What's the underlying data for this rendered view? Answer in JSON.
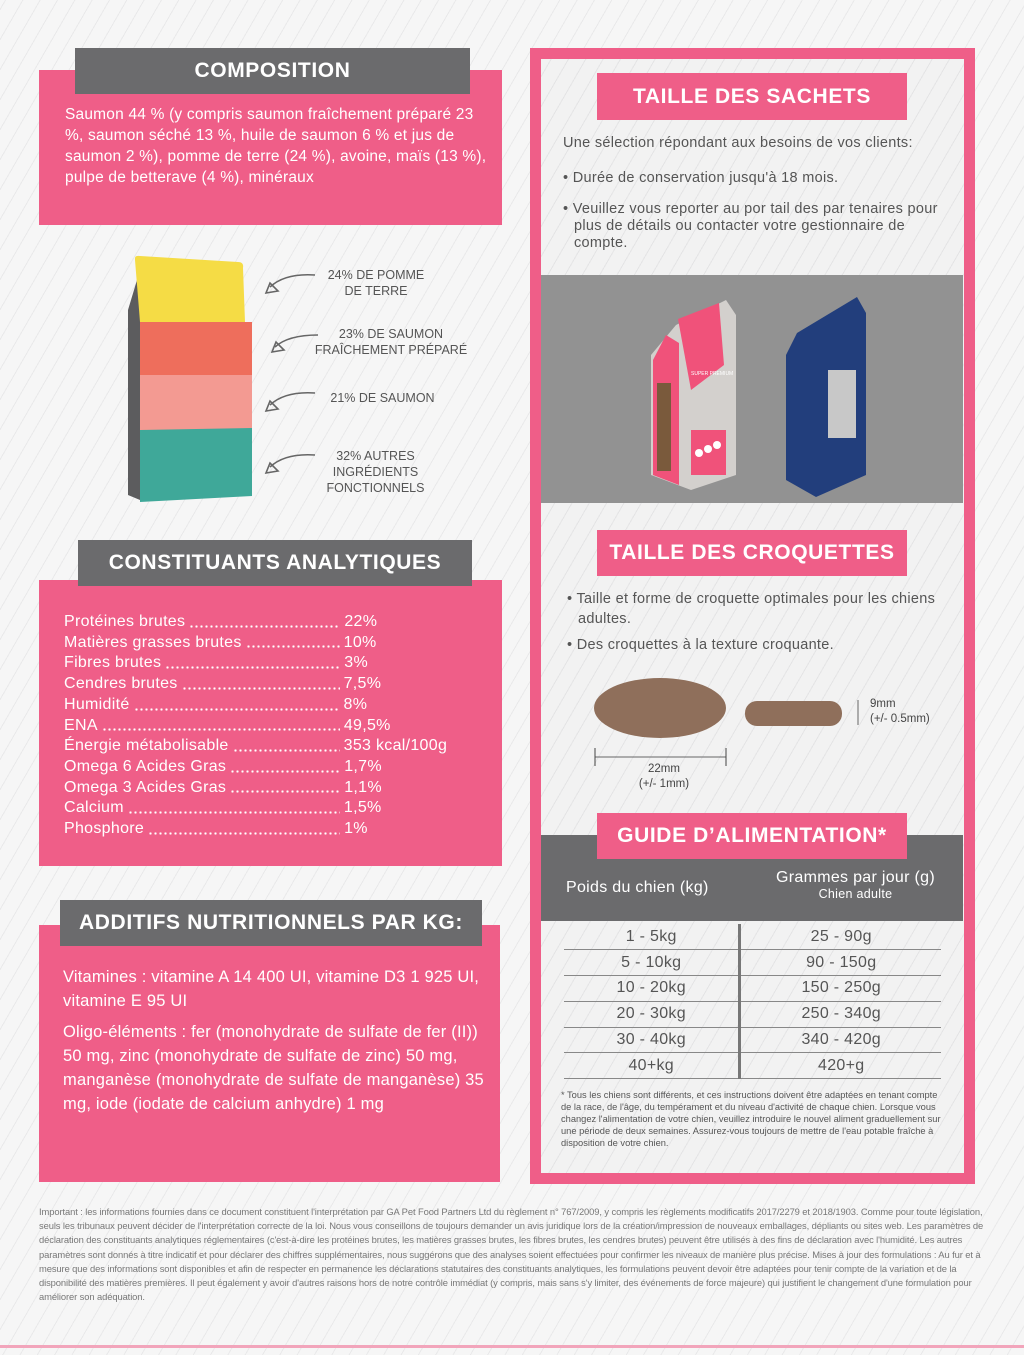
{
  "colors": {
    "pink": "#ef5e88",
    "grey": "#6b6b6d",
    "yellow": "#f5dc45",
    "salmon": "#ee6e5c",
    "lightsalmon": "#f39a92",
    "teal": "#3fa899",
    "kibble": "#8f6f5b",
    "navy": "#223e7c"
  },
  "composition": {
    "title": "COMPOSITION",
    "text": "Saumon 44 % (y compris saumon fraîchement préparé 23 %, saumon séché 13 %, huile de saumon 6 % et jus de saumon 2 %), pomme de terre (24 %), avoine, maïs (13 %), pulpe de betterave (4 %), minéraux"
  },
  "bag_labels": [
    "24% DE POMME DE TERRE",
    "23% DE SAUMON FRAÎCHEMENT PRÉPARÉ",
    "21% DE SAUMON",
    "32% AUTRES INGRÉDIENTS FONCTIONNELS"
  ],
  "analytical": {
    "title": "CONSTITUANTS ANALYTIQUES",
    "rows": [
      {
        "name": "Protéines brutes",
        "value": "22%"
      },
      {
        "name": "Matières grasses brutes",
        "value": "10%"
      },
      {
        "name": "Fibres brutes",
        "value": "3%"
      },
      {
        "name": "Cendres brutes",
        "value": "7,5%"
      },
      {
        "name": "Humidité",
        "value": "8%"
      },
      {
        "name": "ENA",
        "value": "49,5%"
      },
      {
        "name": "Énergie métabolisable",
        "value": "353 kcal/100g"
      },
      {
        "name": "Omega 6 Acides Gras",
        "value": "1,7%"
      },
      {
        "name": "Omega 3 Acides Gras",
        "value": "1,1%"
      },
      {
        "name": "Calcium",
        "value": "1,5%"
      },
      {
        "name": "Phosphore",
        "value": "1%"
      }
    ]
  },
  "additives": {
    "title": "ADDITIFS NUTRITIONNELS PAR KG:",
    "vitamins": "Vitamines : vitamine A 14 400 UI, vitamine D3 1 925 UI, vitamine E 95 UI",
    "trace": "Oligo-éléments : fer (monohydrate de sulfate de fer (II)) 50 mg, zinc (monohydrate de sulfate de zinc) 50 mg, manganèse (monohydrate de sulfate de manganèse) 35 mg, iode (iodate de calcium anhydre) 1 mg"
  },
  "sachets": {
    "title": "TAILLE DES SACHETS",
    "intro": "Une sélection répondant aux besoins de vos clients:",
    "bullets": [
      "Durée de conservation jusqu'à 18 mois.",
      "Veuillez vous reporter au por tail des par tenaires pour plus de détails ou contacter votre gestionnaire de compte."
    ],
    "bag_brand": "SUPER PREMIUM"
  },
  "croquettes": {
    "title": "TAILLE DES CROQUETTES",
    "bullets": [
      "Taille et forme de croquette optimales pour les chiens adultes.",
      "Des croquettes à la texture croquante."
    ],
    "width": "22mm",
    "width_tol": "(+/- 1mm)",
    "height": "9mm",
    "height_tol": "(+/- 0.5mm)"
  },
  "guide": {
    "title": "GUIDE D’ALIMENTATION*",
    "col1": "Poids du chien (kg)",
    "col2": "Grammes par jour (g)",
    "col2_sub": "Chien adulte",
    "rows": [
      [
        "1 - 5kg",
        "25 - 90g"
      ],
      [
        "5 - 10kg",
        "90 - 150g"
      ],
      [
        "10 - 20kg",
        "150 - 250g"
      ],
      [
        "20 - 30kg",
        "250 - 340g"
      ],
      [
        "30 - 40kg",
        "340 - 420g"
      ],
      [
        "40+kg",
        "420+g"
      ]
    ],
    "note": "* Tous les chiens sont différents, et ces instructions doivent être adaptées en tenant compte de la race, de l'âge, du tempérament et du niveau d'activité de chaque chien. Lorsque vous changez l'alimentation de votre chien, veuillez introduire le nouvel aliment graduellement sur une période de deux semaines. Assurez-vous toujours de mettre de l'eau potable fraîche à disposition de votre chien."
  },
  "footer": "Important : les informations fournies dans ce document constituent l'interprétation par GA Pet Food Partners Ltd du règlement n° 767/2009, y compris les règlements modificatifs 2017/2279 et 2018/1903. Comme pour toute législation, seuls les tribunaux peuvent décider de l'interprétation correcte de la loi. Nous vous conseillons de toujours demander un avis juridique lors de la création/impression de nouveaux emballages, dépliants ou sites web. Les paramètres de déclaration des constituants analytiques réglementaires (c'est-à-dire les protéines brutes, les matières grasses brutes, les fibres brutes, les cendres brutes) peuvent être utilisés à des fins de déclaration avec l'humidité. Les autres paramètres sont donnés à titre indicatif et pour déclarer des chiffres supplémentaires, nous suggérons que des analyses soient effectuées pour confirmer les niveaux de manière plus précise. Mises à jour des formulations : Au fur et à mesure que des informations sont disponibles et afin de respecter en permanence les déclarations statutaires des constituants analytiques, les formulations peuvent devoir être adaptées pour tenir compte de la variation et de la disponibilité des matières premières. Il peut également y avoir d'autres raisons hors de notre contrôle immédiat (y compris, mais sans s'y limiter, des événements de force majeure) qui justifient le changement d'une formulation pour améliorer son adéquation."
}
